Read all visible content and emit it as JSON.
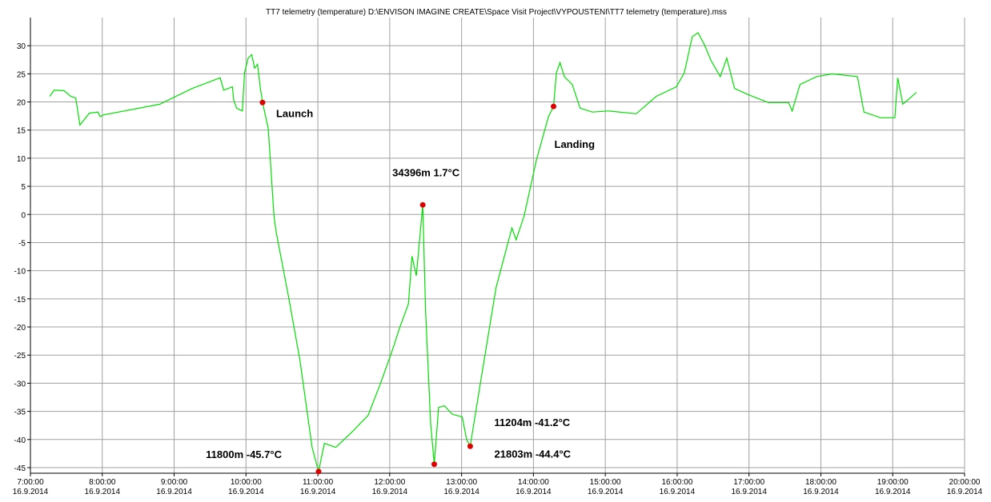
{
  "chart_data": {
    "type": "line",
    "title": "TT7 telemetry (temperature)    D:\\ENVISON IMAGINE CREATE\\Space Visit Project\\VYPOUSTENI\\TT7 telemetry (temperature).mss",
    "xlim": [
      7,
      20
    ],
    "xticks": [
      {
        "value": 7,
        "label": "7:00:00\n16.9.2014"
      },
      {
        "value": 8,
        "label": "8:00:00\n16.9.2014"
      },
      {
        "value": 9,
        "label": "9:00:00\n16.9.2014"
      },
      {
        "value": 10,
        "label": "10:00:00\n16.9.2014"
      },
      {
        "value": 11,
        "label": "11:00:00\n16.9.2014"
      },
      {
        "value": 12,
        "label": "12:00:00\n16.9.2014"
      },
      {
        "value": 13,
        "label": "13:00:00\n16.9.2014"
      },
      {
        "value": 14,
        "label": "14:00:00\n16.9.2014"
      },
      {
        "value": 15,
        "label": "15:00:00\n16.9.2014"
      },
      {
        "value": 16,
        "label": "16:00:00\n16.9.2014"
      },
      {
        "value": 17,
        "label": "17:00:00\n16.9.2014"
      },
      {
        "value": 18,
        "label": "18:00:00\n16.9.2014"
      },
      {
        "value": 19,
        "label": "19:00:00\n16.9.2014"
      },
      {
        "value": 20,
        "label": "20:00:00\n16.9.2014"
      }
    ],
    "ylim": [
      -46,
      35
    ],
    "yticks": [
      -45,
      -40,
      -35,
      -30,
      -25,
      -20,
      -15,
      -10,
      -5,
      0,
      5,
      10,
      15,
      20,
      25,
      30
    ],
    "grid": true,
    "series": [
      {
        "color": "#00e000",
        "x": [
          7.27,
          7.33,
          7.47,
          7.56,
          7.63,
          7.69,
          7.82,
          7.94,
          7.97,
          8.02,
          8.8,
          9.25,
          9.64,
          9.69,
          9.81,
          9.83,
          9.87,
          9.95,
          9.98,
          10.03,
          10.08,
          10.12,
          10.16,
          10.2,
          10.23,
          10.31,
          10.39,
          10.42,
          10.59,
          10.75,
          10.92,
          11.01,
          11.09,
          11.25,
          11.48,
          11.7,
          11.87,
          12.03,
          12.14,
          12.26,
          12.31,
          12.37,
          12.46,
          12.5,
          12.57,
          12.62,
          12.68,
          12.76,
          12.87,
          13.01,
          13.07,
          13.12,
          13.26,
          13.48,
          13.7,
          13.76,
          13.87,
          14.04,
          14.21,
          14.28,
          14.32,
          14.37,
          14.43,
          14.54,
          14.65,
          14.82,
          15.04,
          15.43,
          15.71,
          15.99,
          16.1,
          16.21,
          16.29,
          16.38,
          16.47,
          16.6,
          16.69,
          16.8,
          16.99,
          17.27,
          17.55,
          17.6,
          17.71,
          17.94,
          18.16,
          18.51,
          18.6,
          18.83,
          19.03,
          19.07,
          19.14,
          19.33
        ],
        "values": [
          21.0,
          22.1,
          22.0,
          21.0,
          20.7,
          15.9,
          18.0,
          18.2,
          17.4,
          17.7,
          19.6,
          22.4,
          24.3,
          22.1,
          22.7,
          20.3,
          18.9,
          18.4,
          25.2,
          27.8,
          28.4,
          26.0,
          26.7,
          22.4,
          19.9,
          15.3,
          -0.3,
          -3.1,
          -14.5,
          -25.8,
          -41.4,
          -45.7,
          -40.7,
          -41.4,
          -38.6,
          -35.7,
          -30.1,
          -24.4,
          -20.1,
          -15.9,
          -7.4,
          -10.9,
          1.7,
          -17.3,
          -37.2,
          -44.4,
          -34.3,
          -34.0,
          -35.5,
          -36.0,
          -40.0,
          -41.2,
          -30.1,
          -13.0,
          -2.4,
          -4.5,
          -0.3,
          9.6,
          17.4,
          19.2,
          25.2,
          27.0,
          24.5,
          23.1,
          18.9,
          18.2,
          18.4,
          17.9,
          21.0,
          22.7,
          25.2,
          31.6,
          32.3,
          30.2,
          27.4,
          24.5,
          27.8,
          22.4,
          21.3,
          19.9,
          19.9,
          18.4,
          23.1,
          24.5,
          25.0,
          24.5,
          18.2,
          17.2,
          17.2,
          24.3,
          19.6,
          21.7
        ]
      }
    ],
    "annotations": [
      {
        "text": "Launch",
        "x": 10.23,
        "y": 19.9,
        "color": "#e00000"
      },
      {
        "text": "34396m 1.7°C",
        "x": 12.46,
        "y": 1.7,
        "color": "#e00000"
      },
      {
        "text": "11800m -45.7°C",
        "x": 11.01,
        "y": -45.7,
        "color": "#e00000"
      },
      {
        "text": "21803m -44.4°C",
        "x": 12.62,
        "y": -44.4,
        "color": "#e00000"
      },
      {
        "text": "11204m -41.2°C",
        "x": 13.12,
        "y": -41.2,
        "color": "#e00000"
      },
      {
        "text": "Landing",
        "x": 14.28,
        "y": 19.2,
        "color": "#e00000"
      }
    ]
  }
}
